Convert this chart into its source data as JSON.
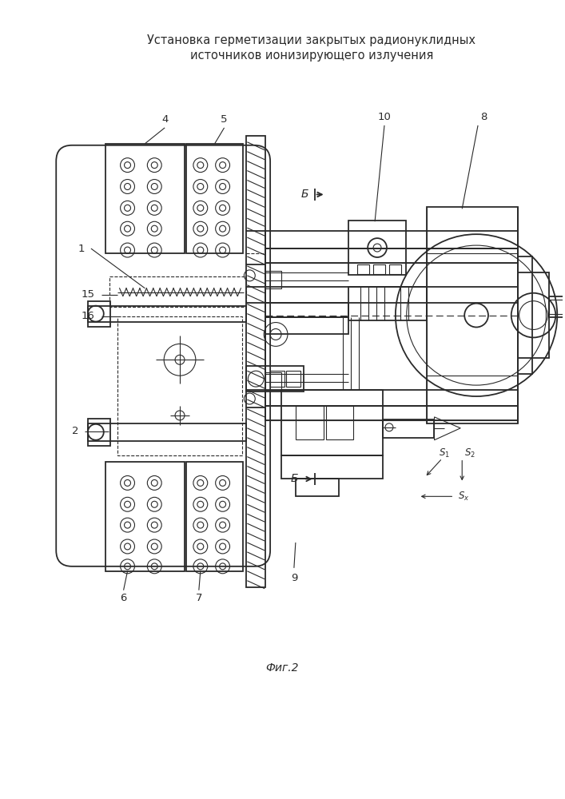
{
  "title_line1": "Установка герметизации закрытых радионуклидных",
  "title_line2": "источников ионизирующего излучения",
  "fig_label": "Фиг.2",
  "bg_color": "#ffffff",
  "line_color": "#2a2a2a",
  "title_fontsize": 10.5,
  "fig_fontsize": 10,
  "label_fontsize": 9.5,
  "small_fontsize": 8
}
